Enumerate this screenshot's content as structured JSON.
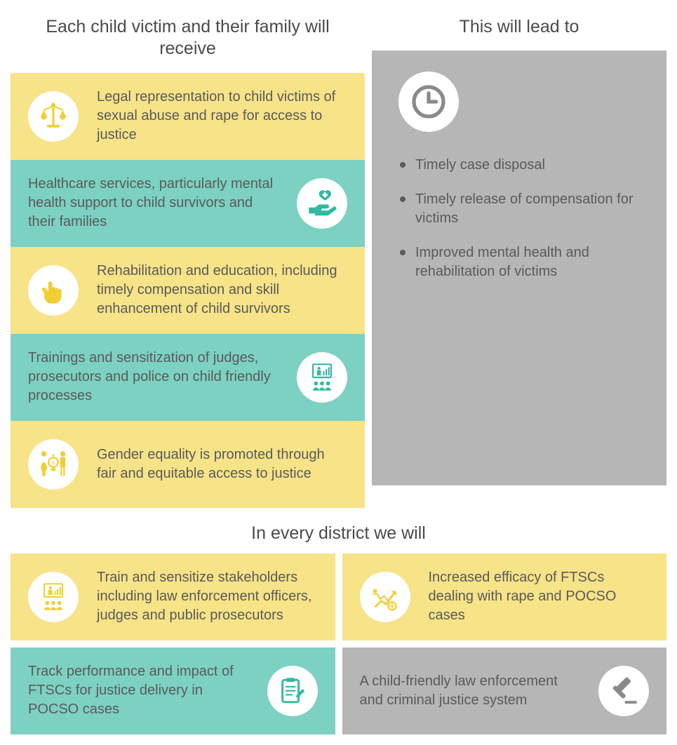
{
  "colors": {
    "yellow": "#f7e388",
    "teal": "#7cd1c2",
    "grey": "#b7b6b6",
    "icon_yellow": "#f0cf34",
    "icon_teal": "#32b8a2",
    "icon_grey": "#8a8a8a",
    "text": "#5a5a5a"
  },
  "headings": {
    "left": "Each child victim and their family will  receive",
    "right": "This will lead to",
    "bottom": "In every district we will"
  },
  "left_cards": [
    {
      "bg": "yellow",
      "icon": "scales",
      "icon_side": "left",
      "text": "Legal representation to child victims of sexual abuse and rape for access to justice"
    },
    {
      "bg": "teal",
      "icon": "heart-hand",
      "icon_side": "right",
      "text": "Healthcare services, particularly mental health support to child survivors and their families"
    },
    {
      "bg": "yellow",
      "icon": "hand",
      "icon_side": "left",
      "text": "Rehabilitation and education, including timely compensation and skill enhancement of child survivors"
    },
    {
      "bg": "teal",
      "icon": "presentation",
      "icon_side": "right",
      "text": "Trainings and sensitization of judges, prosecutors and police on child friendly processes"
    },
    {
      "bg": "yellow",
      "icon": "gender-equality",
      "icon_side": "left",
      "text": "Gender equality is promoted through fair and equitable access to justice"
    }
  ],
  "right_panel": {
    "icon": "clock",
    "bullets": [
      "Timely case disposal",
      "Timely release of compensation for victims",
      "Improved mental health and rehabilitation of victims"
    ]
  },
  "bottom_cards": [
    {
      "bg": "yellow",
      "icon": "presentation",
      "icon_side": "left",
      "icon_color": "yellow",
      "text": "Train and sensitize stakeholders including law enforcement officers, judges and public prosecutors"
    },
    {
      "bg": "yellow",
      "icon": "growth",
      "icon_side": "left",
      "icon_color": "yellow",
      "text": "Increased efficacy of FTSCs dealing with rape and POCSO cases"
    },
    {
      "bg": "teal",
      "icon": "clipboard",
      "icon_side": "right",
      "icon_color": "teal",
      "text": "Track performance and impact of FTSCs for justice delivery in POCSO cases"
    },
    {
      "bg": "grey",
      "icon": "gavel",
      "icon_side": "right",
      "icon_color": "grey",
      "text": "A child-friendly law enforcement and criminal justice system"
    }
  ]
}
